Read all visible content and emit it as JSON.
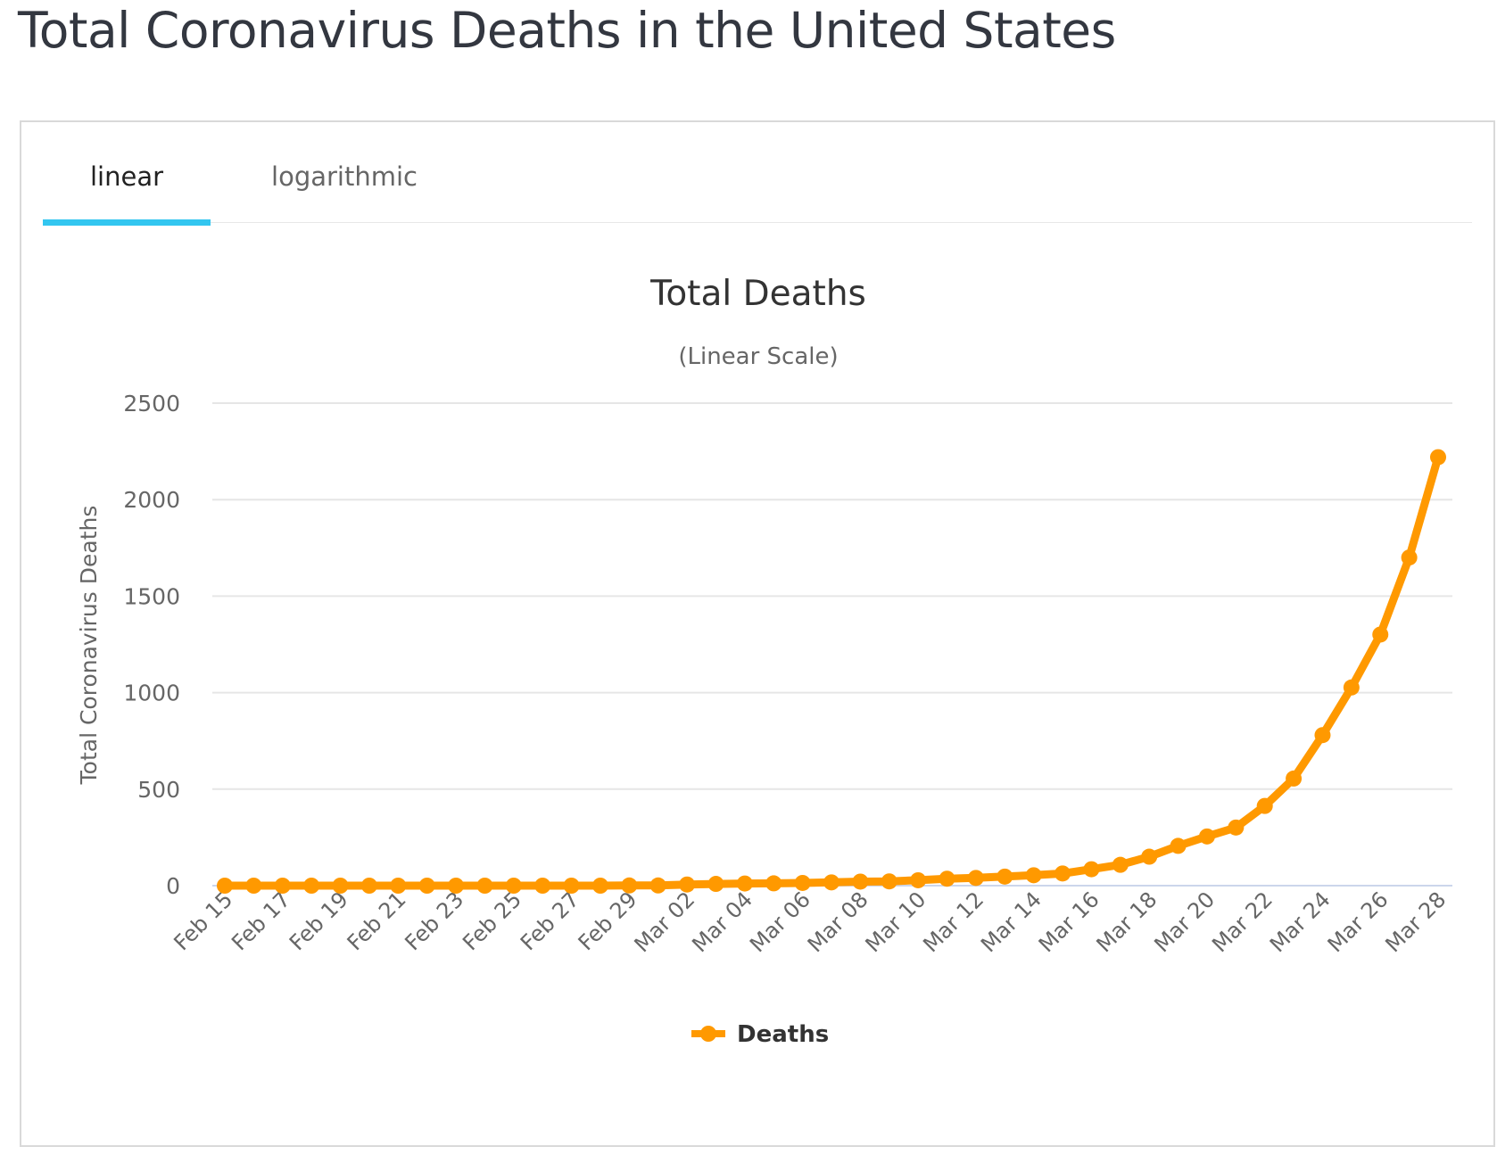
{
  "page": {
    "title": "Total Coronavirus Deaths in the United States"
  },
  "tabs": [
    {
      "label": "linear",
      "active": true
    },
    {
      "label": "logarithmic",
      "active": false
    }
  ],
  "colors": {
    "series": "#ff9900",
    "tab_indicator": "#33c6f0",
    "grid": "#e6e6e6"
  },
  "chart_data": {
    "type": "line",
    "title": "Total Deaths",
    "subtitle": "(Linear Scale)",
    "ylabel": "Total Coronavirus Deaths",
    "xlabel": "",
    "ylim": [
      0,
      2500
    ],
    "yticks": [
      0,
      500,
      1000,
      1500,
      2000,
      2500
    ],
    "grid": true,
    "legend_position": "bottom-center",
    "x": [
      "Feb 15",
      "Feb 16",
      "Feb 17",
      "Feb 18",
      "Feb 19",
      "Feb 20",
      "Feb 21",
      "Feb 22",
      "Feb 23",
      "Feb 24",
      "Feb 25",
      "Feb 26",
      "Feb 27",
      "Feb 28",
      "Feb 29",
      "Mar 01",
      "Mar 02",
      "Mar 03",
      "Mar 04",
      "Mar 05",
      "Mar 06",
      "Mar 07",
      "Mar 08",
      "Mar 09",
      "Mar 10",
      "Mar 11",
      "Mar 12",
      "Mar 13",
      "Mar 14",
      "Mar 15",
      "Mar 16",
      "Mar 17",
      "Mar 18",
      "Mar 19",
      "Mar 20",
      "Mar 21",
      "Mar 22",
      "Mar 23",
      "Mar 24",
      "Mar 25",
      "Mar 26",
      "Mar 27",
      "Mar 28"
    ],
    "xtick_labels": [
      "Feb 15",
      "Feb 17",
      "Feb 19",
      "Feb 21",
      "Feb 23",
      "Feb 25",
      "Feb 27",
      "Feb 29",
      "Mar 02",
      "Mar 04",
      "Mar 06",
      "Mar 08",
      "Mar 10",
      "Mar 12",
      "Mar 14",
      "Mar 16",
      "Mar 18",
      "Mar 20",
      "Mar 22",
      "Mar 24",
      "Mar 26",
      "Mar 28"
    ],
    "series": [
      {
        "name": "Deaths",
        "values": [
          0,
          0,
          0,
          0,
          0,
          0,
          0,
          0,
          0,
          0,
          0,
          0,
          0,
          0,
          1,
          1,
          6,
          9,
          11,
          12,
          14,
          17,
          21,
          22,
          28,
          36,
          40,
          47,
          54,
          63,
          85,
          108,
          150,
          206,
          255,
          301,
          413,
          555,
          780,
          1027,
          1301,
          1700,
          2220
        ]
      }
    ]
  }
}
